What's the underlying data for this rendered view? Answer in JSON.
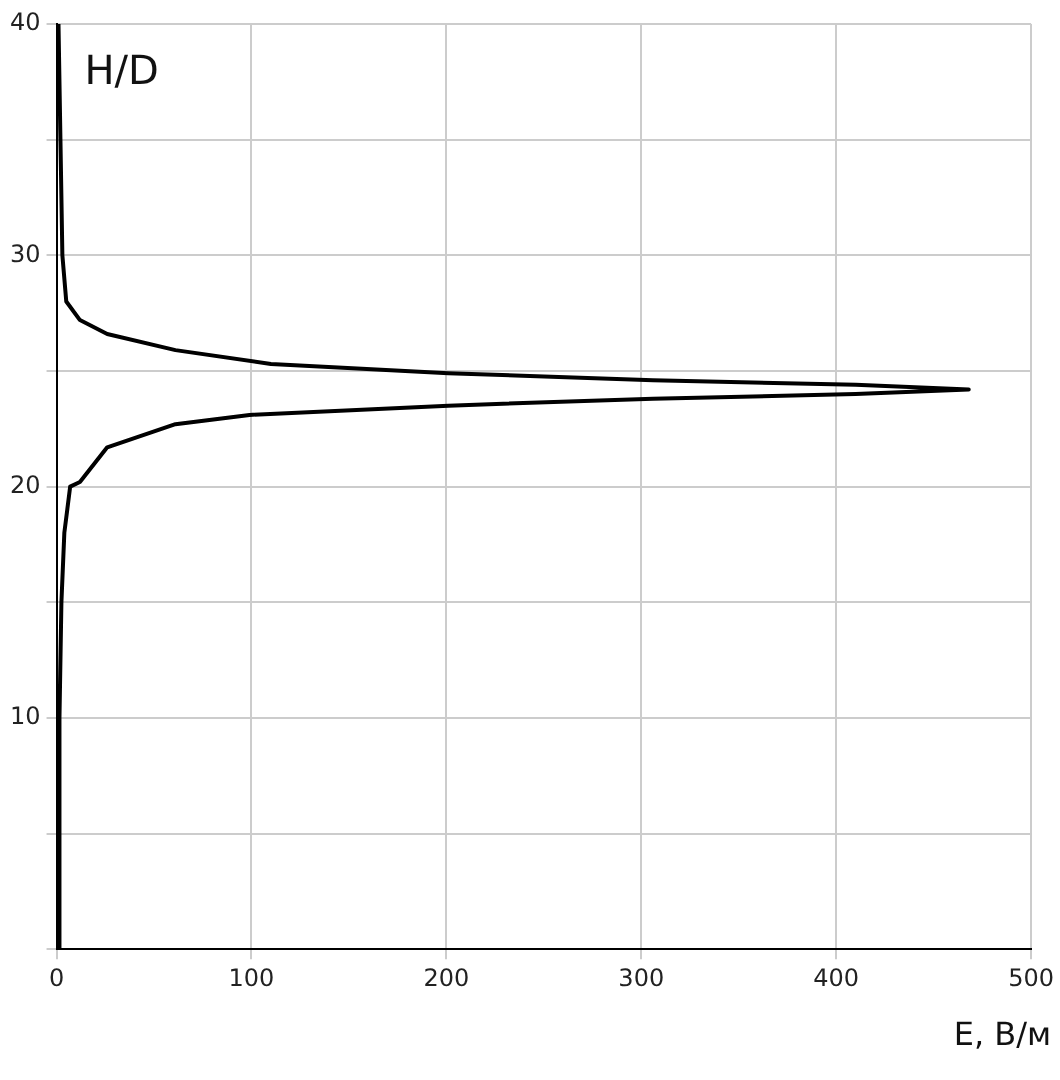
{
  "chart_data": {
    "type": "line",
    "xlabel": "E, В/м",
    "ylabel": "H/D",
    "color": "#000000",
    "x": [
      1,
      1.5,
      2.5,
      4,
      7,
      12,
      26,
      61,
      99,
      201,
      306,
      410,
      468,
      410,
      306,
      201,
      110,
      61,
      26,
      12,
      5,
      3,
      2,
      1
    ],
    "values": [
      0,
      10,
      15,
      18,
      20,
      20.2,
      21.7,
      22.7,
      23.1,
      23.5,
      23.8,
      24.0,
      24.2,
      24.4,
      24.6,
      24.9,
      25.3,
      25.9,
      26.6,
      27.2,
      28.0,
      30,
      35,
      40
    ],
    "xlim": [
      0,
      500
    ],
    "xticks": [
      0,
      100,
      200,
      300,
      400,
      500
    ],
    "ylim": [
      0,
      40
    ],
    "yticks": [
      {
        "value": 0,
        "label": null
      },
      {
        "value": 5,
        "label": null
      },
      10,
      {
        "value": 15,
        "label": null
      },
      20,
      {
        "value": 25,
        "label": null
      },
      30,
      {
        "value": 35,
        "label": null
      },
      40
    ],
    "grid": true,
    "marker": "none",
    "line_style": "solid"
  }
}
